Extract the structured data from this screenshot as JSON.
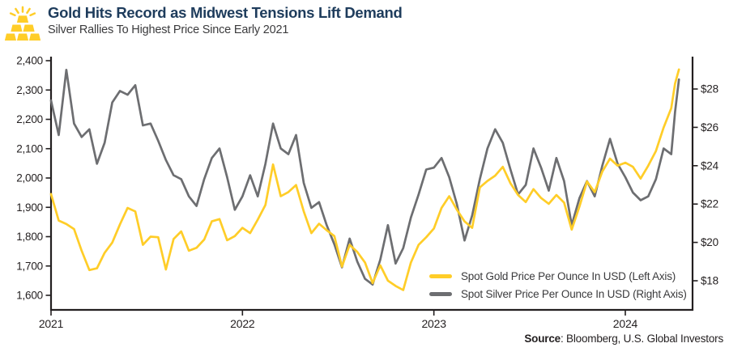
{
  "header": {
    "title": "Gold Hits Record as Midwest Tensions Lift Demand",
    "subtitle": "Silver Rallies To Highest Price Since Early 2021",
    "icon": "gold-bars-icon"
  },
  "colors": {
    "gold_line": "#FFCD28",
    "silver_line": "#6D6E71",
    "title_navy": "#1E3C5C",
    "axis_ink": "#231F20",
    "subtitle_gray": "#3B3B3D",
    "background": "#FFFFFF"
  },
  "source": {
    "label": "Source",
    "rest": ": Bloomberg, U.S. Global Investors"
  },
  "chart_data": {
    "type": "line",
    "title": "Gold Hits Record as Midwest Tensions Lift Demand",
    "subtitle": "Silver Rallies To Highest Price Since Early 2021",
    "grid": false,
    "legend_position": "inside-bottom-right",
    "x_axis": {
      "ticks": [
        {
          "label": "2021",
          "value": 2021
        },
        {
          "label": "2022",
          "value": 2022
        },
        {
          "label": "2023",
          "value": 2023
        },
        {
          "label": "2024",
          "value": 2024
        }
      ],
      "range": [
        2021.0,
        2024.35
      ]
    },
    "left_axis": {
      "label": "Spot Gold Price Per Ounce In USD",
      "ticks": [
        {
          "label": "2,400",
          "value": 2400
        },
        {
          "label": "2,300",
          "value": 2300
        },
        {
          "label": "2,200",
          "value": 2200
        },
        {
          "label": "2,100",
          "value": 2100
        },
        {
          "label": "2,000",
          "value": 2000
        },
        {
          "label": "1,900",
          "value": 1900
        },
        {
          "label": "1,800",
          "value": 1800
        },
        {
          "label": "1,700",
          "value": 1700
        },
        {
          "label": "1,600",
          "value": 1600
        }
      ],
      "range": [
        1550,
        2414
      ]
    },
    "right_axis": {
      "label": "Spot Silver Price Per Ounce In USD",
      "ticks": [
        {
          "label": "$28",
          "value": 28
        },
        {
          "label": "$26",
          "value": 26
        },
        {
          "label": "$24",
          "value": 24
        },
        {
          "label": "$22",
          "value": 22
        },
        {
          "label": "$20",
          "value": 20
        },
        {
          "label": "$18",
          "value": 18
        }
      ],
      "range": [
        16.5,
        29.7
      ]
    },
    "x": [
      2021.0,
      2021.04,
      2021.08,
      2021.12,
      2021.16,
      2021.2,
      2021.24,
      2021.28,
      2021.32,
      2021.36,
      2021.4,
      2021.44,
      2021.48,
      2021.52,
      2021.56,
      2021.6,
      2021.64,
      2021.68,
      2021.72,
      2021.76,
      2021.8,
      2021.84,
      2021.88,
      2021.92,
      2021.96,
      2022.0,
      2022.04,
      2022.08,
      2022.12,
      2022.16,
      2022.2,
      2022.24,
      2022.28,
      2022.32,
      2022.36,
      2022.4,
      2022.44,
      2022.48,
      2022.52,
      2022.56,
      2022.6,
      2022.64,
      2022.68,
      2022.72,
      2022.76,
      2022.8,
      2022.84,
      2022.88,
      2022.92,
      2022.96,
      2023.0,
      2023.04,
      2023.08,
      2023.12,
      2023.16,
      2023.2,
      2023.24,
      2023.28,
      2023.32,
      2023.36,
      2023.4,
      2023.44,
      2023.48,
      2023.52,
      2023.56,
      2023.6,
      2023.64,
      2023.68,
      2023.72,
      2023.76,
      2023.8,
      2023.84,
      2023.88,
      2023.92,
      2023.96,
      2024.0,
      2024.04,
      2024.08,
      2024.12,
      2024.16,
      2024.2,
      2024.24,
      2024.26,
      2024.28
    ],
    "series": [
      {
        "name": "Spot Gold Price Per Ounce In USD (Left Axis)",
        "axis": "left",
        "color": "#FFCD28",
        "values": [
          1945,
          1855,
          1843,
          1826,
          1752,
          1686,
          1692,
          1745,
          1780,
          1842,
          1898,
          1886,
          1772,
          1800,
          1798,
          1688,
          1792,
          1818,
          1752,
          1762,
          1790,
          1852,
          1860,
          1788,
          1802,
          1830,
          1812,
          1858,
          1908,
          2046,
          1938,
          1952,
          1976,
          1886,
          1812,
          1844,
          1822,
          1802,
          1698,
          1772,
          1748,
          1712,
          1642,
          1702,
          1650,
          1632,
          1618,
          1712,
          1772,
          1798,
          1828,
          1898,
          1938,
          1892,
          1852,
          1830,
          1968,
          1990,
          2008,
          2038,
          1982,
          1942,
          1918,
          1962,
          1932,
          1912,
          1942,
          1916,
          1824,
          1902,
          1988,
          1952,
          2022,
          2066,
          2042,
          2052,
          2038,
          1998,
          2042,
          2092,
          2172,
          2238,
          2322,
          2370
        ]
      },
      {
        "name": "Spot Silver Price Per Ounce In USD (Right Axis)",
        "axis": "right",
        "color": "#6D6E71",
        "values": [
          27.4,
          25.6,
          29.0,
          26.2,
          25.5,
          25.9,
          24.1,
          25.2,
          27.3,
          27.9,
          27.7,
          28.2,
          26.1,
          26.2,
          25.3,
          24.3,
          23.5,
          23.3,
          22.4,
          21.9,
          23.3,
          24.4,
          24.9,
          23.4,
          21.7,
          22.4,
          23.5,
          22.4,
          24.1,
          26.2,
          24.9,
          24.6,
          25.6,
          23.1,
          21.8,
          22.1,
          20.9,
          19.9,
          18.7,
          20.2,
          19.0,
          18.1,
          17.8,
          19.1,
          20.9,
          18.9,
          19.7,
          21.3,
          22.5,
          23.8,
          23.9,
          24.4,
          23.4,
          22.0,
          20.1,
          21.4,
          23.3,
          24.9,
          25.9,
          25.2,
          23.8,
          22.5,
          23.0,
          24.9,
          23.9,
          22.7,
          24.4,
          23.2,
          20.9,
          22.3,
          23.2,
          22.4,
          24.0,
          25.4,
          24.1,
          23.4,
          22.6,
          22.2,
          22.4,
          23.3,
          24.9,
          24.6,
          26.8,
          28.5
        ]
      }
    ]
  }
}
